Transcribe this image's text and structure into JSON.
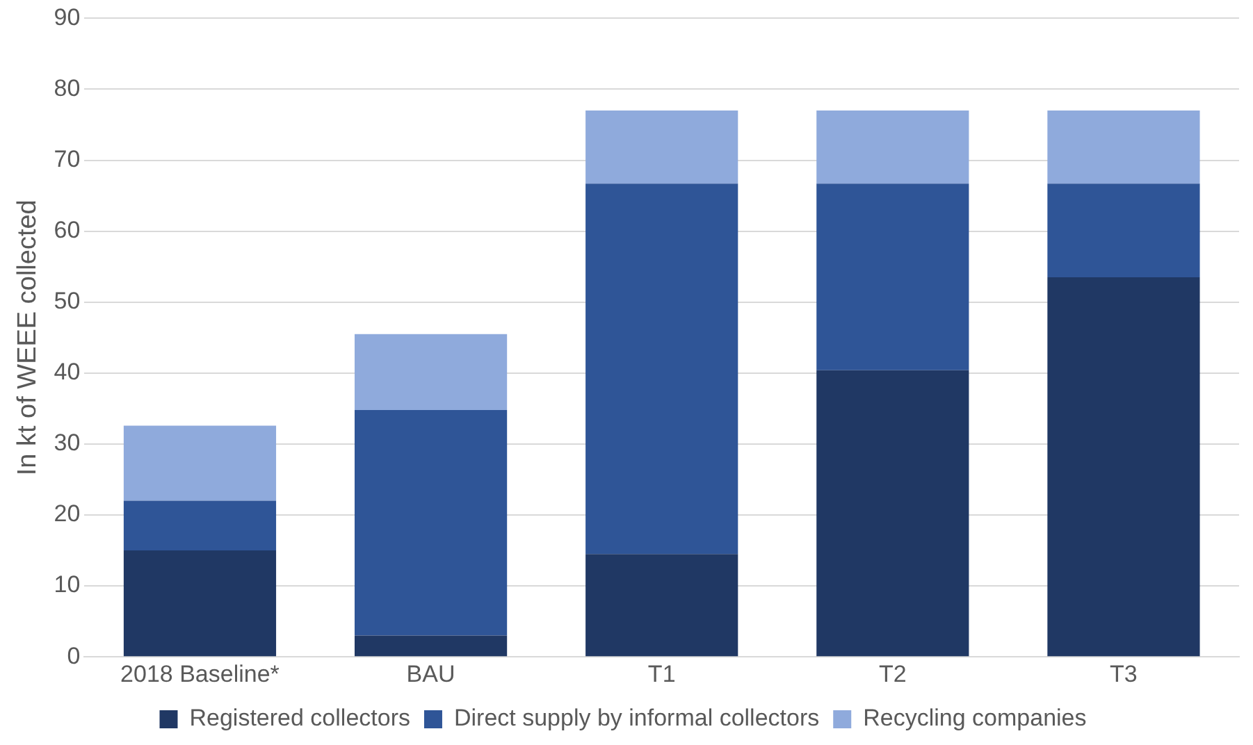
{
  "chart_data": {
    "type": "bar",
    "ylabel": "In kt of WEEE collected",
    "categories": [
      "2018 Baseline*",
      "BAU",
      "T1",
      "T2",
      "T3"
    ],
    "series": [
      {
        "name": "Registered collectors",
        "color": "#203864",
        "values": [
          15,
          3,
          14.5,
          40.4,
          53.5
        ]
      },
      {
        "name": "Direct supply by informal collectors",
        "color": "#2f5597",
        "values": [
          7,
          31.8,
          52.2,
          26.3,
          13.2
        ]
      },
      {
        "name": "Recycling companies",
        "color": "#8faadc",
        "values": [
          10.6,
          10.7,
          10.3,
          10.3,
          10.3
        ]
      }
    ],
    "stacked": true,
    "ylim": [
      0,
      90
    ],
    "yticks": [
      0,
      10,
      20,
      30,
      40,
      50,
      60,
      70,
      80,
      90
    ],
    "grid": "y",
    "legend": "bottom"
  }
}
